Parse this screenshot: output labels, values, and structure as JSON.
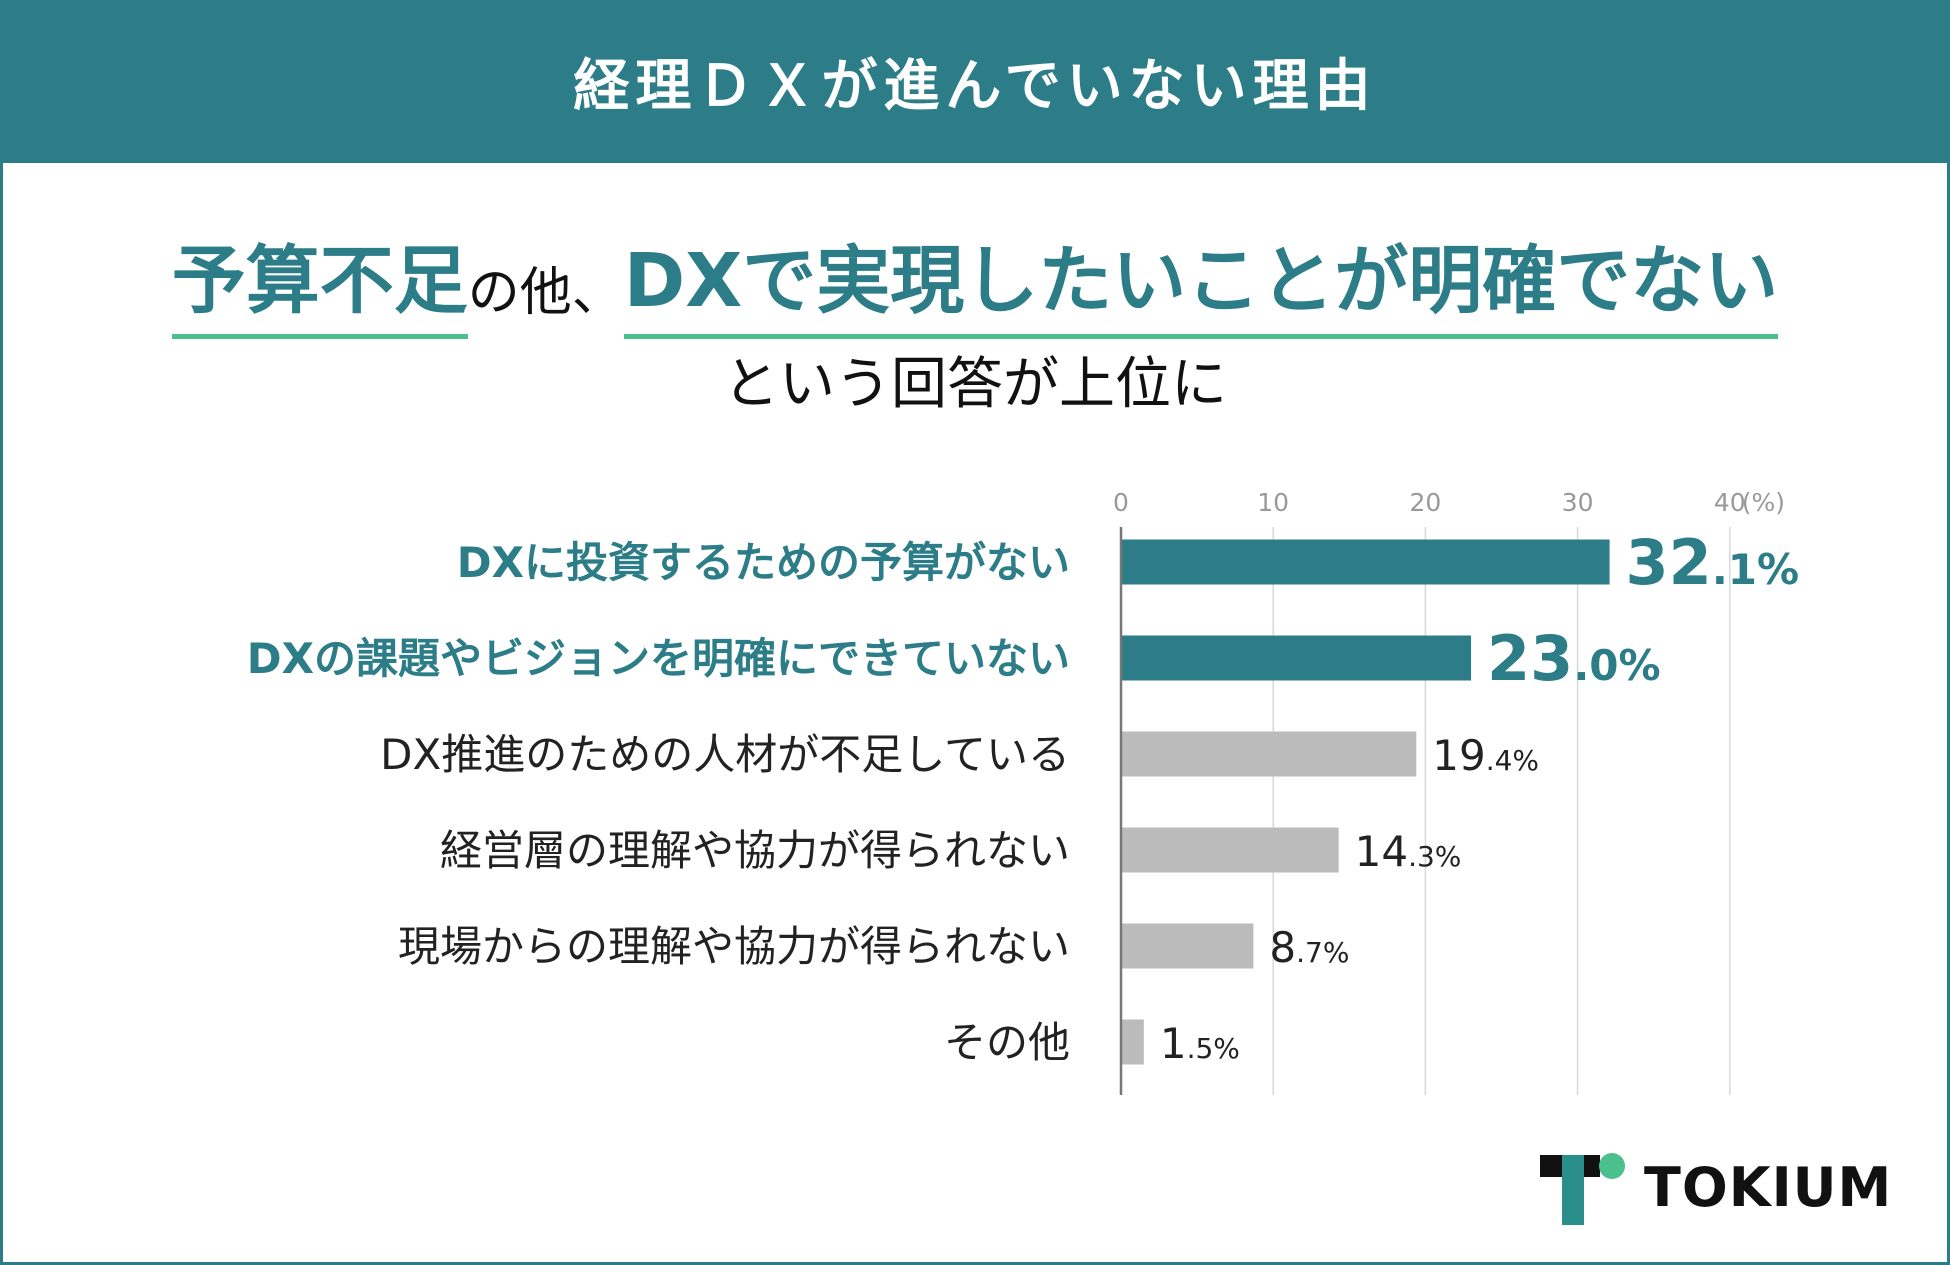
{
  "banner": {
    "title": "経理ＤＸが進んでいない理由"
  },
  "headline": {
    "part1": "予算不足",
    "part2": "の他、",
    "part3": "DXで実現したいことが明確でない",
    "line2": "という回答が上位に"
  },
  "chart_data": {
    "type": "bar",
    "orientation": "horizontal",
    "categories": [
      "DXに投資するための予算がない",
      "DXの課題やビジョンを明確にできていない",
      "DX推進のための人材が不足している",
      "経営層の理解や協力が得られない",
      "現場からの理解や協力が得られない",
      "その他"
    ],
    "values": [
      32.1,
      23.0,
      19.4,
      14.3,
      8.7,
      1.5
    ],
    "highlighted": [
      true,
      true,
      false,
      false,
      false,
      false
    ],
    "value_labels": [
      {
        "int": "32",
        "dec": ".1%"
      },
      {
        "int": "23",
        "dec": ".0%"
      },
      {
        "int": "19",
        "dec": ".4%"
      },
      {
        "int": "14",
        "dec": ".3%"
      },
      {
        "int": "8",
        "dec": ".7%"
      },
      {
        "int": "1",
        "dec": ".5%"
      }
    ],
    "xlim": [
      0,
      40
    ],
    "xticks": [
      "0",
      "10",
      "20",
      "30",
      "40"
    ],
    "unit": "(%)",
    "grid": true,
    "colors": {
      "highlight": "#2c7d87",
      "normal": "#bbbbbb"
    }
  },
  "brand": {
    "name": "TOKIUM",
    "colors": {
      "dark": "#111111",
      "accent": "#2a8f8a",
      "dot": "#4cbf8e"
    }
  }
}
